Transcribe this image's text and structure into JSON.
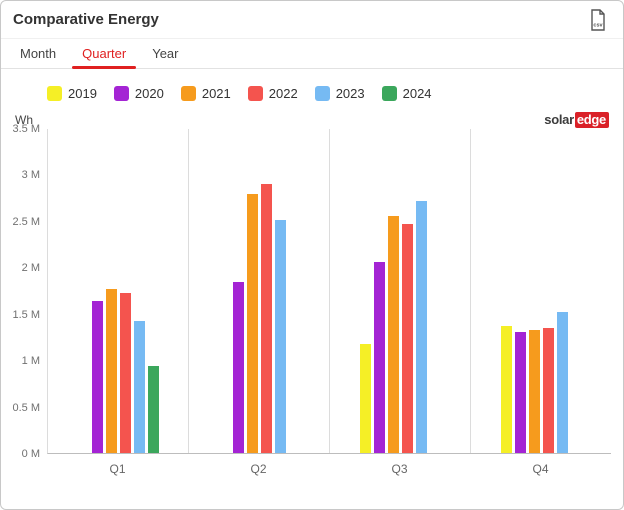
{
  "header": {
    "title": "Comparative Energy",
    "csv_label": "csv",
    "csv_icon": "csv-export"
  },
  "tabs": [
    {
      "label": "Month",
      "active": false
    },
    {
      "label": "Quarter",
      "active": true
    },
    {
      "label": "Year",
      "active": false
    }
  ],
  "logo": {
    "primary": "solar",
    "accent": "edge",
    "accent_bg": "#da2128"
  },
  "colors": {
    "tab_active": "#e02020",
    "axis_text": "#707070",
    "title_text": "#333333"
  },
  "chart_data": {
    "type": "bar",
    "title": "Comparative Energy",
    "ylabel": "Wh",
    "unit": "M",
    "ylim": [
      0,
      3.5
    ],
    "yticks": [
      {
        "value": 3.5,
        "label": "3.5 M"
      },
      {
        "value": 3,
        "label": "3 M"
      },
      {
        "value": 2.5,
        "label": "2.5 M"
      },
      {
        "value": 2,
        "label": "2 M"
      },
      {
        "value": 1.5,
        "label": "1.5 M"
      },
      {
        "value": 1,
        "label": "1 M"
      },
      {
        "value": 0.5,
        "label": "0.5 M"
      },
      {
        "value": 0,
        "label": "0 M"
      }
    ],
    "categories": [
      "Q1",
      "Q2",
      "Q3",
      "Q4"
    ],
    "series": [
      {
        "name": "2019",
        "color": "#f5ef26",
        "values": [
          null,
          null,
          1.18,
          1.37
        ]
      },
      {
        "name": "2020",
        "color": "#a424d4",
        "values": [
          1.64,
          1.85,
          2.06,
          1.31
        ]
      },
      {
        "name": "2021",
        "color": "#f69b1d",
        "values": [
          1.77,
          2.8,
          2.56,
          1.33
        ]
      },
      {
        "name": "2022",
        "color": "#f4544e",
        "values": [
          1.73,
          2.91,
          2.47,
          1.35
        ]
      },
      {
        "name": "2023",
        "color": "#76baf3",
        "values": [
          1.43,
          2.52,
          2.72,
          1.52
        ]
      },
      {
        "name": "2024",
        "color": "#3ba75c",
        "values": [
          0.94,
          null,
          null,
          null
        ]
      }
    ],
    "legend_position": "top",
    "grid": "vertical-only"
  }
}
